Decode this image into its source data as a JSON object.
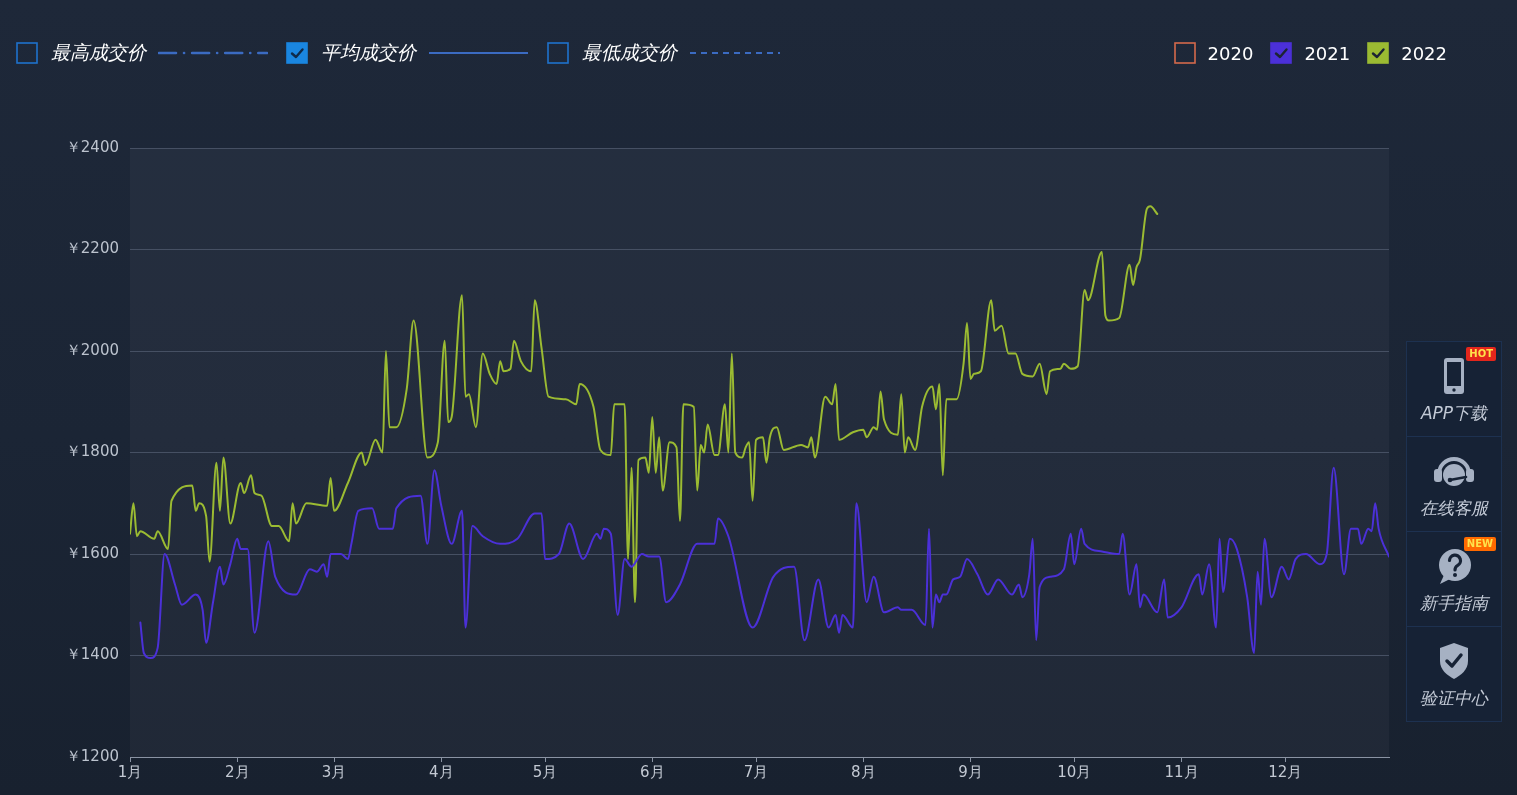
{
  "chart_data": {
    "type": "line",
    "grid": "y",
    "legend": "top right",
    "marker": "none",
    "line_style": "solid",
    "xlim": [
      "--01-01",
      "--12-31"
    ],
    "xticks": [
      {
        "value": "--01-01",
        "label": "1月"
      },
      {
        "value": "--02-01",
        "label": "2月"
      },
      {
        "value": "--03-01",
        "label": "3月"
      },
      {
        "value": "--04-01",
        "label": "4月"
      },
      {
        "value": "--05-01",
        "label": "5月"
      },
      {
        "value": "--06-01",
        "label": "6月"
      },
      {
        "value": "--07-01",
        "label": "7月"
      },
      {
        "value": "--08-01",
        "label": "8月"
      },
      {
        "value": "--09-01",
        "label": "9月"
      },
      {
        "value": "--10-01",
        "label": "10月"
      },
      {
        "value": "--11-01",
        "label": "11月"
      },
      {
        "value": "--12-01",
        "label": "12月"
      }
    ],
    "ylim": [
      1200,
      2400
    ],
    "yticks": [
      {
        "value": 1200,
        "label": "￥1200"
      },
      {
        "value": 1400,
        "label": "￥1400"
      },
      {
        "value": 1600,
        "label": "￥1600"
      },
      {
        "value": 1800,
        "label": "￥1800"
      },
      {
        "value": 2000,
        "label": "￥2000"
      },
      {
        "value": 2200,
        "label": "￥2200"
      },
      {
        "value": 2400,
        "label": "￥2400"
      }
    ],
    "annotations": [
      "最高成交价",
      "平均成交价",
      "最低成交价",
      "APP下载",
      "在线客服",
      "新手指南",
      "验证中心",
      "HOT",
      "NEW"
    ],
    "series": [
      {
        "name": "2020",
        "color": "#d4694b"
      },
      {
        "name": "2021",
        "color": "#4b30d8",
        "x": [
          "--01-04",
          "--01-05",
          "--01-07",
          "--01-09",
          "--01-11",
          "--01-14",
          "--01-16",
          "--01-20",
          "--01-22",
          "--01-23",
          "--01-25",
          "--01-27",
          "--01-28",
          "--01-30",
          "--02-01",
          "--02-02",
          "--02-04",
          "--02-06",
          "--02-10",
          "--02-12",
          "--02-18",
          "--02-22",
          "--02-24",
          "--02-26",
          "--02-27",
          "--02-28",
          "--03-03",
          "--03-05",
          "--03-06",
          "--03-08",
          "--03-12",
          "--03-14",
          "--03-18",
          "--03-19",
          "--03-26",
          "--03-28",
          "--03-30",
          "--04-01",
          "--04-04",
          "--04-07",
          "--04-08",
          "--04-10",
          "--04-13",
          "--04-18",
          "--04-23",
          "--04-28",
          "--04-30",
          "--05-01",
          "--05-05",
          "--05-08",
          "--05-12",
          "--05-16",
          "--05-17",
          "--05-18",
          "--05-20",
          "--05-22",
          "--05-24",
          "--05-26",
          "--05-29",
          "--05-31",
          "--06-03",
          "--06-05",
          "--06-09",
          "--06-14",
          "--06-19",
          "--06-20",
          "--06-23",
          "--06-30",
          "--07-06",
          "--07-12",
          "--07-15",
          "--07-19",
          "--07-22",
          "--07-24",
          "--07-25",
          "--07-26",
          "--07-29",
          "--07-30",
          "--08-02",
          "--08-04",
          "--08-07",
          "--08-11",
          "--08-12",
          "--08-15",
          "--08-19",
          "--08-20",
          "--08-21",
          "--08-22",
          "--08-23",
          "--08-24",
          "--08-25",
          "--08-27",
          "--08-29",
          "--08-31",
          "--09-03",
          "--09-06",
          "--09-09",
          "--09-13",
          "--09-15",
          "--09-16",
          "--09-18",
          "--09-19",
          "--09-20",
          "--09-21",
          "--09-24",
          "--09-28",
          "--09-30",
          "--10-01",
          "--10-03",
          "--10-04",
          "--10-09",
          "--10-14",
          "--10-15",
          "--10-17",
          "--10-19",
          "--10-20",
          "--10-21",
          "--10-25",
          "--10-27",
          "--10-28",
          "--11-01",
          "--11-06",
          "--11-07",
          "--11-09",
          "--11-11",
          "--11-12",
          "--11-13",
          "--11-15",
          "--11-17",
          "--11-20",
          "--11-22",
          "--11-23",
          "--11-24",
          "--11-25",
          "--11-27",
          "--11-30",
          "--12-02",
          "--12-04",
          "--12-07",
          "--12-11",
          "--12-13",
          "--12-15",
          "--12-18",
          "--12-20",
          "--12-22",
          "--12-23",
          "--12-25",
          "--12-26",
          "--12-27",
          "--12-28",
          "--12-31"
        ],
        "values": [
          1465,
          1405,
          1395,
          1415,
          1600,
          1540,
          1500,
          1520,
          1490,
          1425,
          1505,
          1575,
          1540,
          1580,
          1630,
          1610,
          1610,
          1445,
          1625,
          1555,
          1520,
          1570,
          1565,
          1580,
          1555,
          1600,
          1600,
          1590,
          1620,
          1685,
          1690,
          1650,
          1650,
          1690,
          1715,
          1620,
          1765,
          1695,
          1620,
          1685,
          1455,
          1655,
          1635,
          1620,
          1630,
          1680,
          1680,
          1590,
          1600,
          1660,
          1590,
          1640,
          1630,
          1650,
          1640,
          1480,
          1590,
          1575,
          1600,
          1595,
          1595,
          1505,
          1540,
          1620,
          1620,
          1670,
          1635,
          1455,
          1555,
          1575,
          1430,
          1550,
          1455,
          1480,
          1445,
          1480,
          1455,
          1700,
          1505,
          1555,
          1485,
          1495,
          1490,
          1490,
          1460,
          1650,
          1455,
          1520,
          1505,
          1520,
          1520,
          1550,
          1555,
          1590,
          1560,
          1520,
          1550,
          1520,
          1540,
          1515,
          1560,
          1630,
          1430,
          1535,
          1555,
          1570,
          1640,
          1580,
          1650,
          1620,
          1605,
          1600,
          1640,
          1520,
          1580,
          1495,
          1520,
          1485,
          1550,
          1475,
          1495,
          1560,
          1520,
          1580,
          1455,
          1630,
          1525,
          1630,
          1610,
          1515,
          1405,
          1565,
          1500,
          1630,
          1515,
          1575,
          1550,
          1590,
          1600,
          1580,
          1600,
          1770,
          1560,
          1650,
          1650,
          1620,
          1650,
          1645,
          1700,
          1650,
          1595
        ]
      },
      {
        "name": "2022",
        "color": "#9bbb32",
        "x": [
          "--01-01",
          "--01-02",
          "--01-03",
          "--01-04",
          "--01-08",
          "--01-09",
          "--01-12",
          "--01-13",
          "--01-19",
          "--01-20",
          "--01-21",
          "--01-23",
          "--01-24",
          "--01-26",
          "--01-27",
          "--01-28",
          "--01-30",
          "--02-02",
          "--02-03",
          "--02-05",
          "--02-06",
          "--02-08",
          "--02-11",
          "--02-13",
          "--02-16",
          "--02-17",
          "--02-18",
          "--02-21",
          "--02-27",
          "--02-28",
          "--03-01",
          "--03-05",
          "--03-09",
          "--03-10",
          "--03-13",
          "--03-15",
          "--03-16",
          "--03-17",
          "--03-19",
          "--03-22",
          "--03-24",
          "--03-28",
          "--03-31",
          "--04-02",
          "--04-03",
          "--04-04",
          "--04-07",
          "--04-08",
          "--04-09",
          "--04-11",
          "--04-13",
          "--04-15",
          "--04-17",
          "--04-18",
          "--04-19",
          "--04-21",
          "--04-22",
          "--04-24",
          "--04-27",
          "--04-28",
          "--04-30",
          "--05-02",
          "--05-07",
          "--05-10",
          "--05-11",
          "--05-15",
          "--05-17",
          "--05-20",
          "--05-21",
          "--05-24",
          "--05-25",
          "--05-26",
          "--05-27",
          "--05-28",
          "--05-30",
          "--05-31",
          "--06-01",
          "--06-02",
          "--06-03",
          "--06-04",
          "--06-06",
          "--06-08",
          "--06-09",
          "--06-10",
          "--06-13",
          "--06-14",
          "--06-15",
          "--06-16",
          "--06-17",
          "--06-19",
          "--06-20",
          "--06-22",
          "--06-23",
          "--06-24",
          "--06-25",
          "--06-27",
          "--06-28",
          "--06-29",
          "--06-30",
          "--07-01",
          "--07-03",
          "--07-04",
          "--07-05",
          "--07-07",
          "--07-09",
          "--07-14",
          "--07-16",
          "--07-17",
          "--07-18",
          "--07-21",
          "--07-23",
          "--07-24",
          "--07-25",
          "--07-29",
          "--08-01",
          "--08-02",
          "--08-04",
          "--08-05",
          "--08-06",
          "--08-07",
          "--08-11",
          "--08-12",
          "--08-13",
          "--08-14",
          "--08-16",
          "--08-18",
          "--08-21",
          "--08-22",
          "--08-23",
          "--08-24",
          "--08-25",
          "--08-28",
          "--08-30",
          "--08-31",
          "--09-01",
          "--09-02",
          "--09-04",
          "--09-07",
          "--09-08",
          "--09-10",
          "--09-12",
          "--09-14",
          "--09-16",
          "--09-19",
          "--09-21",
          "--09-23",
          "--09-24",
          "--09-27",
          "--09-28",
          "--09-30",
          "--10-02",
          "--10-04",
          "--10-05",
          "--10-09",
          "--10-10",
          "--10-11",
          "--10-14",
          "--10-17",
          "--10-18",
          "--10-19",
          "--10-20",
          "--10-22",
          "--10-23",
          "--10-25"
        ],
        "values": [
          1640,
          1700,
          1635,
          1645,
          1630,
          1645,
          1610,
          1705,
          1735,
          1685,
          1700,
          1675,
          1585,
          1780,
          1685,
          1790,
          1660,
          1740,
          1720,
          1755,
          1720,
          1715,
          1655,
          1655,
          1625,
          1700,
          1660,
          1700,
          1695,
          1750,
          1685,
          1740,
          1800,
          1775,
          1825,
          1800,
          2000,
          1850,
          1850,
          1925,
          2060,
          1790,
          1820,
          2020,
          1860,
          1870,
          2110,
          1910,
          1915,
          1850,
          1995,
          1955,
          1935,
          1980,
          1960,
          1965,
          2020,
          1980,
          1960,
          2100,
          2005,
          1910,
          1905,
          1895,
          1935,
          1890,
          1805,
          1795,
          1895,
          1895,
          1590,
          1770,
          1505,
          1785,
          1790,
          1760,
          1870,
          1760,
          1830,
          1725,
          1820,
          1810,
          1665,
          1895,
          1890,
          1725,
          1815,
          1800,
          1855,
          1795,
          1795,
          1895,
          1800,
          1995,
          1800,
          1790,
          1810,
          1820,
          1705,
          1825,
          1830,
          1780,
          1830,
          1850,
          1805,
          1815,
          1810,
          1830,
          1790,
          1910,
          1895,
          1935,
          1825,
          1840,
          1845,
          1830,
          1850,
          1845,
          1920,
          1865,
          1835,
          1915,
          1800,
          1830,
          1805,
          1890,
          1930,
          1885,
          1935,
          1755,
          1905,
          1905,
          1975,
          2055,
          1945,
          1955,
          1960,
          2100,
          2040,
          2050,
          1995,
          1995,
          1955,
          1950,
          1975,
          1915,
          1960,
          1965,
          1975,
          1965,
          1970,
          2120,
          2100,
          2195,
          2070,
          2060,
          2065,
          2170,
          2130,
          2165,
          2180,
          2280,
          2285,
          2270
        ]
      }
    ]
  }
}
